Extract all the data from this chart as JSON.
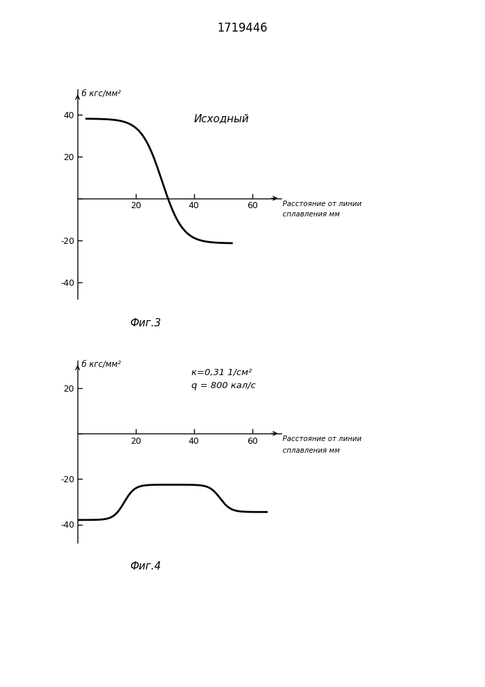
{
  "title": "1719446",
  "title_fontsize": 12,
  "fig1_label": "Исходный",
  "fig2_annotation_line1": "к=0,31 1/см²",
  "fig2_annotation_line2": "q = 800 кал/с",
  "ylabel": "б кгс/мм²",
  "xlabel_line1": "Расстояние от линии",
  "xlabel_line2": "сплавления мм",
  "fig_caption1": "Фиг.3",
  "fig_caption2": "Фиг.4",
  "xlim1": [
    0,
    70
  ],
  "ylim1": [
    -48,
    52
  ],
  "yticks1": [
    -40,
    -20,
    0,
    20,
    40
  ],
  "xticks1": [
    20,
    40,
    60
  ],
  "xlim2": [
    0,
    70
  ],
  "ylim2": [
    -48,
    32
  ],
  "yticks2": [
    -40,
    -20,
    0,
    20
  ],
  "xticks2": [
    20,
    40,
    60
  ],
  "line_color": "#000000",
  "line_width": 2.0,
  "bg_color": "#ffffff"
}
